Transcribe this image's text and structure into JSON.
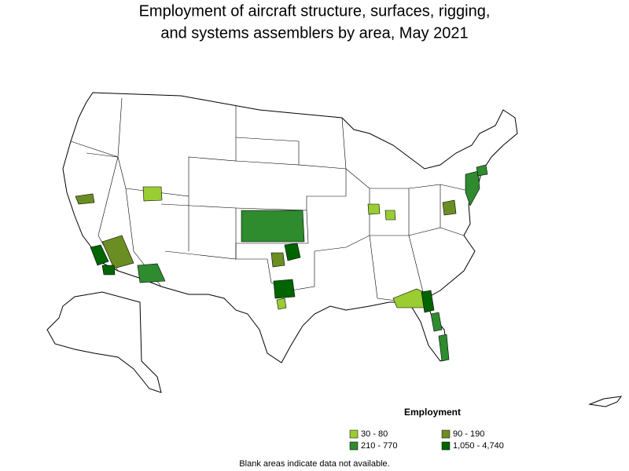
{
  "header": {
    "title": [
      "Employment of aircraft structure, surfaces, rigging,",
      "and systems assemblers by area, May 2021"
    ]
  },
  "legend": {
    "title": "Employment",
    "items": [
      {
        "label": "30 - 80",
        "color": "#9acd32"
      },
      {
        "label": "90 - 190",
        "color": "#6b8e23"
      },
      {
        "label": "210 - 770",
        "color": "#2e8b2e"
      },
      {
        "label": "1,050 - 4,740",
        "color": "#006400"
      }
    ]
  },
  "note": "Blank areas indicate data not available."
}
